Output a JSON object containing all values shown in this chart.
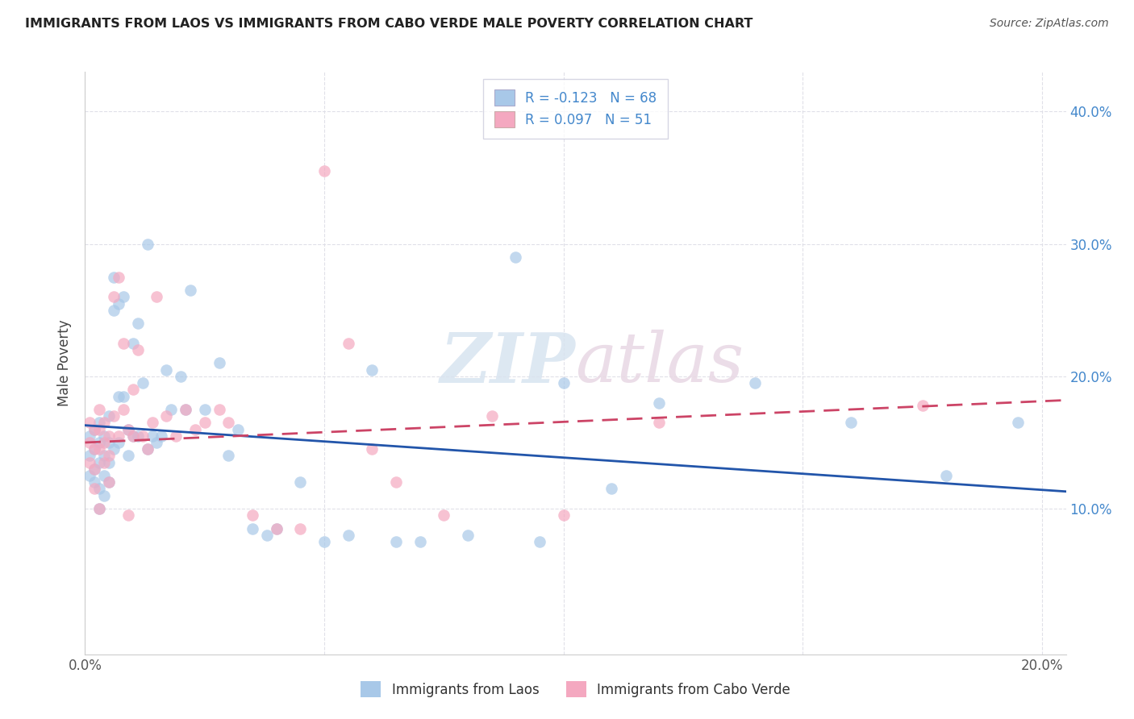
{
  "title": "IMMIGRANTS FROM LAOS VS IMMIGRANTS FROM CABO VERDE MALE POVERTY CORRELATION CHART",
  "source": "Source: ZipAtlas.com",
  "ylabel": "Male Poverty",
  "xlim": [
    0.0,
    0.205
  ],
  "ylim": [
    -0.01,
    0.43
  ],
  "R1": -0.123,
  "N1": 68,
  "R2": 0.097,
  "N2": 51,
  "color1": "#a8c8e8",
  "color2": "#f4a8c0",
  "line_color1": "#2255aa",
  "line_color2": "#cc4466",
  "background_color": "#ffffff",
  "grid_color": "#e0e0e8",
  "legend_label1": "Immigrants from Laos",
  "legend_label2": "Immigrants from Cabo Verde",
  "laos_x": [
    0.001,
    0.001,
    0.001,
    0.002,
    0.002,
    0.002,
    0.002,
    0.003,
    0.003,
    0.003,
    0.003,
    0.003,
    0.004,
    0.004,
    0.004,
    0.004,
    0.005,
    0.005,
    0.005,
    0.005,
    0.006,
    0.006,
    0.006,
    0.007,
    0.007,
    0.007,
    0.008,
    0.008,
    0.009,
    0.009,
    0.01,
    0.01,
    0.011,
    0.011,
    0.012,
    0.013,
    0.013,
    0.014,
    0.015,
    0.016,
    0.017,
    0.018,
    0.02,
    0.021,
    0.022,
    0.025,
    0.028,
    0.03,
    0.032,
    0.035,
    0.038,
    0.04,
    0.045,
    0.05,
    0.055,
    0.06,
    0.065,
    0.07,
    0.08,
    0.09,
    0.095,
    0.1,
    0.11,
    0.12,
    0.14,
    0.16,
    0.18,
    0.195
  ],
  "laos_y": [
    0.155,
    0.14,
    0.125,
    0.16,
    0.145,
    0.13,
    0.12,
    0.165,
    0.15,
    0.135,
    0.115,
    0.1,
    0.155,
    0.14,
    0.125,
    0.11,
    0.15,
    0.17,
    0.135,
    0.12,
    0.275,
    0.25,
    0.145,
    0.255,
    0.185,
    0.15,
    0.26,
    0.185,
    0.16,
    0.14,
    0.225,
    0.155,
    0.24,
    0.155,
    0.195,
    0.3,
    0.145,
    0.155,
    0.15,
    0.155,
    0.205,
    0.175,
    0.2,
    0.175,
    0.265,
    0.175,
    0.21,
    0.14,
    0.16,
    0.085,
    0.08,
    0.085,
    0.12,
    0.075,
    0.08,
    0.205,
    0.075,
    0.075,
    0.08,
    0.29,
    0.075,
    0.195,
    0.115,
    0.18,
    0.195,
    0.165,
    0.125,
    0.165
  ],
  "cabo_x": [
    0.001,
    0.001,
    0.001,
    0.002,
    0.002,
    0.002,
    0.002,
    0.003,
    0.003,
    0.003,
    0.003,
    0.004,
    0.004,
    0.004,
    0.005,
    0.005,
    0.005,
    0.006,
    0.006,
    0.007,
    0.007,
    0.008,
    0.008,
    0.009,
    0.009,
    0.01,
    0.01,
    0.011,
    0.012,
    0.013,
    0.014,
    0.015,
    0.017,
    0.019,
    0.021,
    0.023,
    0.025,
    0.028,
    0.03,
    0.035,
    0.04,
    0.045,
    0.05,
    0.055,
    0.06,
    0.065,
    0.075,
    0.085,
    0.1,
    0.12,
    0.175
  ],
  "cabo_y": [
    0.165,
    0.15,
    0.135,
    0.16,
    0.145,
    0.13,
    0.115,
    0.175,
    0.16,
    0.145,
    0.1,
    0.165,
    0.15,
    0.135,
    0.155,
    0.14,
    0.12,
    0.26,
    0.17,
    0.275,
    0.155,
    0.225,
    0.175,
    0.16,
    0.095,
    0.19,
    0.155,
    0.22,
    0.155,
    0.145,
    0.165,
    0.26,
    0.17,
    0.155,
    0.175,
    0.16,
    0.165,
    0.175,
    0.165,
    0.095,
    0.085,
    0.085,
    0.355,
    0.225,
    0.145,
    0.12,
    0.095,
    0.17,
    0.095,
    0.165,
    0.178
  ]
}
